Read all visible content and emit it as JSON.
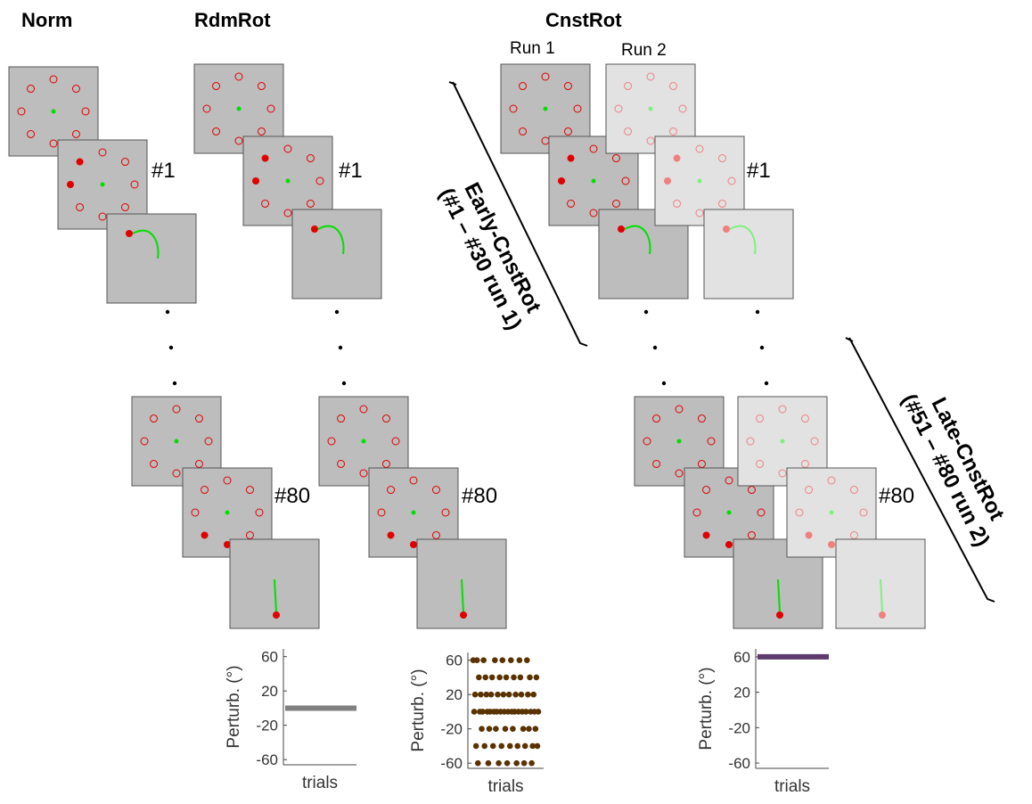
{
  "columns": [
    {
      "title": "Norm"
    },
    {
      "title": "RdmRot"
    },
    {
      "title": "CnstRot",
      "runs": [
        "Run 1",
        "Run 2"
      ]
    }
  ],
  "trial_labels": {
    "first": "#1",
    "last": "#80"
  },
  "brackets": [
    {
      "title": "Early-CnstRot",
      "subtitle": "(#1 – #30 run 1)"
    },
    {
      "title": "Late-CnstRot",
      "subtitle": "(#51 – #80 run 2)"
    }
  ],
  "plots": [
    {
      "type": "hline",
      "value": 0,
      "color": "#808080",
      "ylabel": "Perturb. (°)",
      "xlabel": "trials",
      "ylim": [
        -66,
        69
      ],
      "yticks": [
        60,
        20,
        -20,
        -60
      ]
    },
    {
      "type": "scatter",
      "color": "#5a3200",
      "ylabel": "Perturb. (°)",
      "xlabel": "trials",
      "ylim": [
        -66,
        69
      ],
      "yticks": [
        60,
        20,
        -20,
        -60
      ],
      "values": [
        60,
        0,
        20,
        -40,
        60,
        -60,
        40,
        0,
        20,
        -20,
        0,
        60,
        -40,
        40,
        20,
        0,
        -60,
        -20,
        0,
        20,
        40,
        -40,
        0,
        60,
        -20,
        0,
        20,
        -60,
        40,
        0,
        -40,
        60,
        20,
        0,
        -20,
        40,
        -60,
        0,
        20,
        -40,
        60,
        0,
        -20,
        40,
        0,
        20,
        -60,
        -40,
        0,
        60,
        40,
        20,
        0,
        -20,
        -60,
        -40,
        0,
        60,
        20,
        -20,
        40,
        0,
        -60,
        -40,
        20,
        0,
        -20,
        40,
        -40,
        0
      ]
    },
    {
      "type": "hline",
      "value": 60,
      "color": "#5e3a6e",
      "ylabel": "Perturb. (°)",
      "xlabel": "trials",
      "ylim": [
        -66,
        69
      ],
      "yticks": [
        60,
        20,
        -20,
        -60
      ]
    }
  ]
}
